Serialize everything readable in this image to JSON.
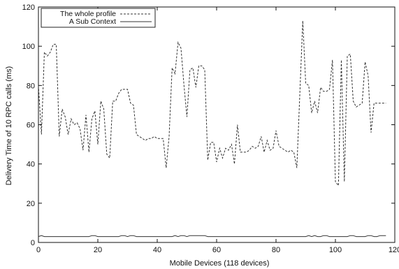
{
  "chart_data": {
    "type": "line",
    "title": "",
    "xlabel": "Mobile Devices (118 devices)",
    "ylabel": "Delivery Time of 10 RPC calls (ms)",
    "xlim": [
      0,
      120
    ],
    "ylim": [
      0,
      120
    ],
    "xticks": [
      0,
      20,
      40,
      60,
      80,
      100,
      120
    ],
    "yticks": [
      0,
      20,
      40,
      60,
      80,
      100,
      120
    ],
    "grid": false,
    "legend_position": "top-left",
    "series": [
      {
        "name": "The whole profile",
        "style": "dashed",
        "color": "#333333",
        "x": [
          0,
          1,
          2,
          3,
          4,
          5,
          6,
          7,
          8,
          9,
          10,
          11,
          12,
          13,
          14,
          15,
          16,
          17,
          18,
          19,
          20,
          21,
          22,
          23,
          24,
          25,
          26,
          27,
          28,
          29,
          30,
          31,
          32,
          33,
          34,
          35,
          36,
          37,
          38,
          39,
          40,
          41,
          42,
          43,
          44,
          45,
          46,
          47,
          48,
          49,
          50,
          51,
          52,
          53,
          54,
          55,
          56,
          57,
          58,
          59,
          60,
          61,
          62,
          63,
          64,
          65,
          66,
          67,
          68,
          69,
          70,
          71,
          72,
          73,
          74,
          75,
          76,
          77,
          78,
          79,
          80,
          81,
          82,
          83,
          84,
          85,
          86,
          87,
          88,
          89,
          90,
          91,
          92,
          93,
          94,
          95,
          96,
          97,
          98,
          99,
          100,
          101,
          102,
          103,
          104,
          105,
          106,
          107,
          108,
          109,
          110,
          111,
          112,
          113,
          114,
          115,
          116,
          117
        ],
        "values": [
          80,
          55,
          97,
          95,
          97,
          101,
          101,
          54,
          68,
          64,
          55,
          63,
          60,
          61,
          58,
          47,
          65,
          46,
          63,
          67,
          50,
          72,
          68,
          45,
          43,
          72,
          72,
          76,
          78,
          78,
          78,
          71,
          70,
          55,
          54,
          53,
          52,
          53,
          53,
          54,
          53,
          53,
          53,
          38,
          54,
          89,
          86,
          102,
          99,
          80,
          64,
          88,
          89,
          79,
          90,
          90,
          88,
          42,
          51,
          51,
          41,
          48,
          43,
          48,
          47,
          50,
          40,
          60,
          46,
          46,
          46,
          47,
          49,
          48,
          49,
          54,
          46,
          52,
          47,
          48,
          57,
          49,
          48,
          47,
          46,
          47,
          46,
          38,
          75,
          113,
          81,
          80,
          66,
          72,
          66,
          79,
          77,
          77,
          78,
          93,
          31,
          29,
          93,
          31,
          95,
          96,
          72,
          69,
          70,
          71,
          92,
          85,
          56,
          71,
          71,
          71,
          71,
          71
        ],
        "values_note": ""
      },
      {
        "name": "A Sub Context",
        "style": "solid",
        "color": "#333333",
        "x": [
          0,
          1,
          2,
          3,
          4,
          5,
          6,
          7,
          8,
          9,
          10,
          11,
          12,
          13,
          14,
          15,
          16,
          17,
          18,
          19,
          20,
          21,
          22,
          23,
          24,
          25,
          26,
          27,
          28,
          29,
          30,
          31,
          32,
          33,
          34,
          35,
          36,
          37,
          38,
          39,
          40,
          41,
          42,
          43,
          44,
          45,
          46,
          47,
          48,
          49,
          50,
          51,
          52,
          53,
          54,
          55,
          56,
          57,
          58,
          59,
          60,
          61,
          62,
          63,
          64,
          65,
          66,
          67,
          68,
          69,
          70,
          71,
          72,
          73,
          74,
          75,
          76,
          77,
          78,
          79,
          80,
          81,
          82,
          83,
          84,
          85,
          86,
          87,
          88,
          89,
          90,
          91,
          92,
          93,
          94,
          95,
          96,
          97,
          98,
          99,
          100,
          101,
          102,
          103,
          104,
          105,
          106,
          107,
          108,
          109,
          110,
          111,
          112,
          113,
          114,
          115,
          116,
          117
        ],
        "values": [
          3,
          3.5,
          3,
          3,
          3,
          3,
          3,
          3,
          3,
          3,
          3,
          3,
          3,
          3,
          3,
          3,
          3,
          3,
          3.5,
          3.5,
          3,
          3,
          3,
          3,
          3,
          3,
          3,
          3,
          3.5,
          3.5,
          3,
          3.5,
          3.5,
          3,
          3,
          3,
          3,
          3,
          3,
          3,
          3,
          3,
          3,
          3,
          3,
          3,
          3.5,
          3,
          3.5,
          3.5,
          3,
          3.5,
          3.5,
          3.5,
          3.5,
          3.5,
          3.5,
          3,
          3,
          3,
          3,
          3,
          3,
          3,
          3,
          3,
          3,
          3,
          3,
          3,
          3,
          3,
          3,
          3,
          3,
          3,
          3,
          3,
          3,
          3,
          3,
          3,
          3,
          3,
          3,
          3,
          3,
          3,
          3,
          3,
          3,
          3.5,
          3,
          3.5,
          3,
          3,
          3.5,
          3.5,
          3,
          3,
          3,
          3,
          3,
          3,
          3,
          3.5,
          3.5,
          3,
          3,
          3,
          3,
          3.5,
          3.5,
          3,
          3,
          3.5,
          3.5,
          3.5
        ]
      }
    ]
  }
}
